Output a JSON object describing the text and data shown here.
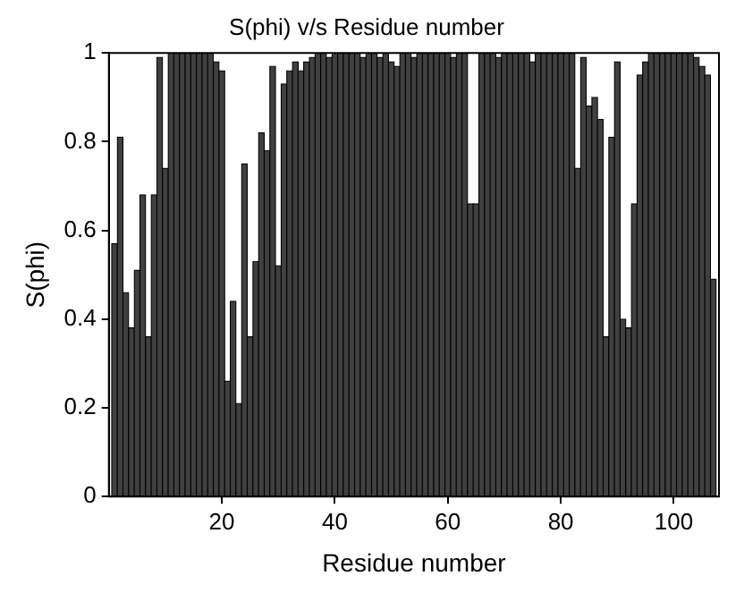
{
  "chart_data": {
    "type": "bar",
    "title": "S(phi) v/s Residue number",
    "xlabel": "Residue number",
    "ylabel": "S(phi)",
    "x": [
      1,
      2,
      3,
      4,
      5,
      6,
      7,
      8,
      9,
      10,
      11,
      12,
      13,
      14,
      15,
      16,
      17,
      18,
      19,
      20,
      21,
      22,
      23,
      24,
      25,
      26,
      27,
      28,
      29,
      30,
      31,
      32,
      33,
      34,
      35,
      36,
      37,
      38,
      39,
      40,
      41,
      42,
      43,
      44,
      45,
      46,
      47,
      48,
      49,
      50,
      51,
      52,
      53,
      54,
      55,
      56,
      57,
      58,
      59,
      60,
      61,
      62,
      63,
      64,
      65,
      66,
      67,
      68,
      69,
      70,
      71,
      72,
      73,
      74,
      75,
      76,
      77,
      78,
      79,
      80,
      81,
      82,
      83,
      84,
      85,
      86,
      87,
      88,
      89,
      90,
      91,
      92,
      93,
      94,
      95,
      96,
      97,
      98,
      99,
      100,
      101,
      102,
      103,
      104,
      105,
      106,
      107
    ],
    "values": [
      0.57,
      0.81,
      0.46,
      0.38,
      0.51,
      0.68,
      0.36,
      0.68,
      0.99,
      0.74,
      1,
      1,
      1,
      1,
      1,
      1,
      1,
      1,
      0.98,
      0.96,
      0.26,
      0.44,
      0.21,
      0.75,
      0.36,
      0.53,
      0.82,
      0.78,
      0.97,
      0.52,
      0.93,
      0.96,
      0.98,
      0.96,
      0.98,
      0.99,
      1,
      1,
      0.99,
      1,
      1,
      1,
      1,
      1,
      0.99,
      1,
      1,
      0.99,
      1,
      0.98,
      0.97,
      1,
      1,
      0.99,
      1,
      1,
      1,
      1,
      1,
      1,
      0.99,
      1,
      1,
      0.66,
      0.66,
      1,
      1,
      1,
      0.99,
      1,
      1,
      1,
      1,
      1,
      0.98,
      1,
      1,
      1,
      1,
      1,
      1,
      1,
      0.74,
      0.99,
      0.88,
      0.9,
      0.85,
      0.36,
      0.81,
      0.98,
      0.4,
      0.38,
      0.66,
      0.95,
      0.98,
      1,
      1,
      1,
      1,
      1,
      1,
      1,
      1,
      0.99,
      0.97,
      0.95,
      0.49
    ],
    "color": "#404040",
    "xlim": [
      0,
      108
    ],
    "xticks": [
      20,
      40,
      60,
      80,
      100
    ],
    "ylim": [
      0,
      1
    ],
    "yticks": [
      0,
      0.2,
      0.4,
      0.6,
      0.8,
      1
    ],
    "grid": false,
    "legend": false
  }
}
